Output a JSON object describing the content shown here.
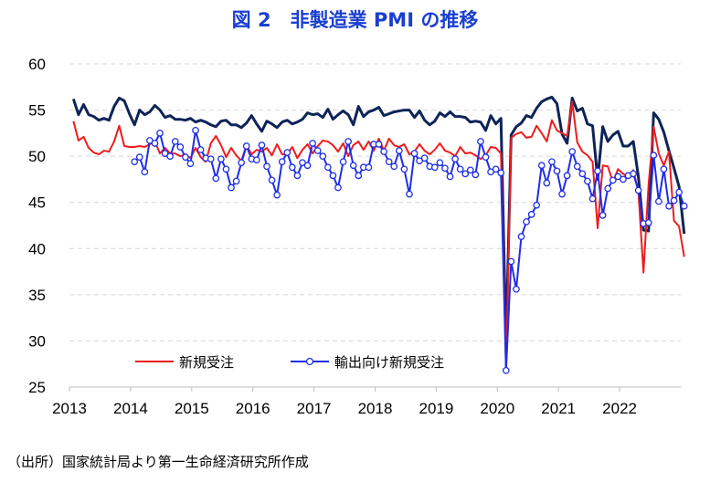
{
  "title": "図 2　非製造業 PMI の推移",
  "source": "（出所）国家統計局より第一生命経済研究所作成",
  "colors": {
    "new_orders": "#ee1c1c",
    "export_orders": "#1f2ee6",
    "pmi": "#0e2458",
    "title": "#1a3fd0"
  },
  "chart_data": {
    "type": "line",
    "title": "図 2　非製造業 PMI の推移",
    "xlabel": "",
    "ylabel": "",
    "ylim": [
      25,
      60
    ],
    "yticks": [
      25,
      30,
      35,
      40,
      45,
      50,
      55,
      60
    ],
    "xticks": [
      "2013",
      "2014",
      "2015",
      "2016",
      "2017",
      "2018",
      "2019",
      "2020",
      "2021",
      "2022"
    ],
    "x_start": "2013-01",
    "grid": true,
    "legend": "bottom-left",
    "series": [
      {
        "name": "",
        "color": "#0e2458",
        "markers": false,
        "values": [
          56.2,
          54.5,
          55.6,
          54.5,
          54.3,
          53.9,
          54.1,
          53.9,
          55.4,
          56.3,
          56.0,
          54.6,
          53.4,
          55.0,
          54.5,
          54.8,
          55.5,
          55.0,
          54.2,
          54.4,
          54.0,
          54.0,
          53.9,
          54.1,
          53.7,
          53.9,
          53.7,
          53.4,
          53.2,
          53.8,
          53.9,
          53.4,
          53.4,
          53.1,
          53.6,
          54.4,
          53.5,
          52.7,
          53.8,
          53.5,
          53.1,
          53.7,
          53.9,
          53.5,
          53.7,
          54.0,
          54.7,
          54.5,
          54.6,
          54.2,
          55.1,
          54.0,
          54.5,
          54.9,
          54.5,
          53.4,
          55.4,
          54.3,
          54.8,
          55.0,
          55.3,
          54.4,
          54.6,
          54.8,
          54.9,
          55.0,
          55.0,
          54.2,
          54.9,
          53.9,
          53.4,
          53.8,
          54.7,
          54.3,
          54.8,
          54.3,
          54.3,
          54.2,
          53.7,
          53.8,
          53.7,
          52.8,
          54.4,
          53.5,
          54.1,
          29.6,
          52.3,
          53.2,
          53.6,
          54.4,
          54.2,
          55.2,
          55.9,
          56.2,
          56.4,
          55.7,
          52.4,
          51.4,
          56.3,
          54.9,
          55.2,
          53.5,
          53.3,
          47.5,
          53.2,
          51.6,
          52.3,
          52.7,
          51.1,
          51.1,
          51.6,
          47.8,
          42.0,
          41.9,
          54.7,
          54.0,
          52.6,
          50.6,
          48.7,
          46.7,
          41.6
        ]
      },
      {
        "name": "新規受注",
        "color": "#ee1c1c",
        "markers": false,
        "values": [
          53.8,
          51.7,
          52.1,
          50.9,
          50.4,
          50.2,
          50.6,
          50.5,
          51.6,
          53.3,
          51.1,
          51.0,
          51.0,
          51.1,
          51.0,
          51.3,
          51.6,
          50.3,
          50.9,
          50.3,
          50.3,
          50.0,
          50.2,
          49.8,
          50.9,
          49.9,
          49.4,
          51.4,
          52.2,
          51.2,
          49.9,
          50.9,
          50.1,
          49.5,
          51.2,
          50.2,
          50.7,
          50.5,
          50.9,
          50.1,
          51.3,
          50.2,
          50.2,
          51.0,
          49.8,
          50.7,
          51.3,
          50.3,
          51.1,
          51.7,
          51.6,
          51.2,
          50.5,
          51.4,
          50.0,
          51.2,
          51.6,
          50.7,
          51.6,
          50.6,
          51.9,
          50.6,
          51.9,
          51.2,
          51.0,
          51.3,
          50.2,
          50.5,
          51.3,
          50.6,
          50.2,
          50.7,
          51.4,
          50.6,
          50.4,
          50.0,
          51.0,
          50.3,
          50.4,
          50.1,
          49.7,
          50.1,
          51.0,
          50.9,
          50.3,
          26.8,
          52.0,
          52.4,
          52.6,
          52.0,
          52.1,
          53.3,
          52.5,
          51.6,
          53.9,
          52.8,
          52.5,
          52.2,
          55.9,
          51.5,
          50.5,
          50.1,
          49.4,
          42.2,
          49.0,
          48.9,
          47.2,
          48.6,
          48.1,
          47.7,
          48.5,
          46.2,
          37.4,
          46.9,
          53.2,
          50.3,
          49.0,
          50.5,
          43.0,
          42.4,
          39.1
        ]
      },
      {
        "name": "輸出向け新規受注",
        "color": "#1f2ee6",
        "markers": true,
        "values": [
          null,
          null,
          null,
          null,
          null,
          null,
          null,
          null,
          null,
          null,
          null,
          null,
          49.4,
          49.9,
          48.3,
          51.7,
          51.4,
          52.5,
          50.3,
          50.0,
          51.6,
          51.0,
          49.9,
          49.2,
          52.8,
          50.7,
          49.8,
          49.7,
          47.6,
          49.7,
          48.6,
          46.6,
          47.3,
          49.3,
          51.1,
          49.7,
          49.6,
          51.2,
          48.9,
          47.4,
          45.8,
          49.4,
          50.4,
          48.8,
          47.9,
          49.3,
          49.0,
          51.4,
          50.6,
          50.0,
          48.8,
          47.9,
          46.6,
          49.4,
          51.6,
          49.0,
          47.9,
          48.8,
          48.8,
          51.3,
          51.3,
          50.5,
          49.4,
          48.9,
          50.6,
          48.6,
          45.9,
          50.3,
          49.5,
          49.8,
          48.9,
          48.8,
          49.3,
          48.7,
          47.8,
          49.7,
          48.6,
          48.1,
          48.5,
          48.0,
          51.6,
          49.9,
          48.3,
          48.6,
          48.2,
          26.8,
          38.6,
          35.6,
          41.3,
          42.9,
          43.7,
          44.7,
          49.0,
          47.1,
          49.4,
          48.4,
          45.9,
          47.9,
          50.5,
          48.9,
          48.1,
          47.3,
          45.4,
          48.4,
          43.6,
          46.5,
          47.4,
          47.8,
          47.5,
          47.9,
          48.1,
          46.3,
          42.7,
          42.8,
          50.1,
          45.1,
          48.6,
          44.6,
          45.2,
          46.1,
          44.6
        ]
      }
    ]
  }
}
